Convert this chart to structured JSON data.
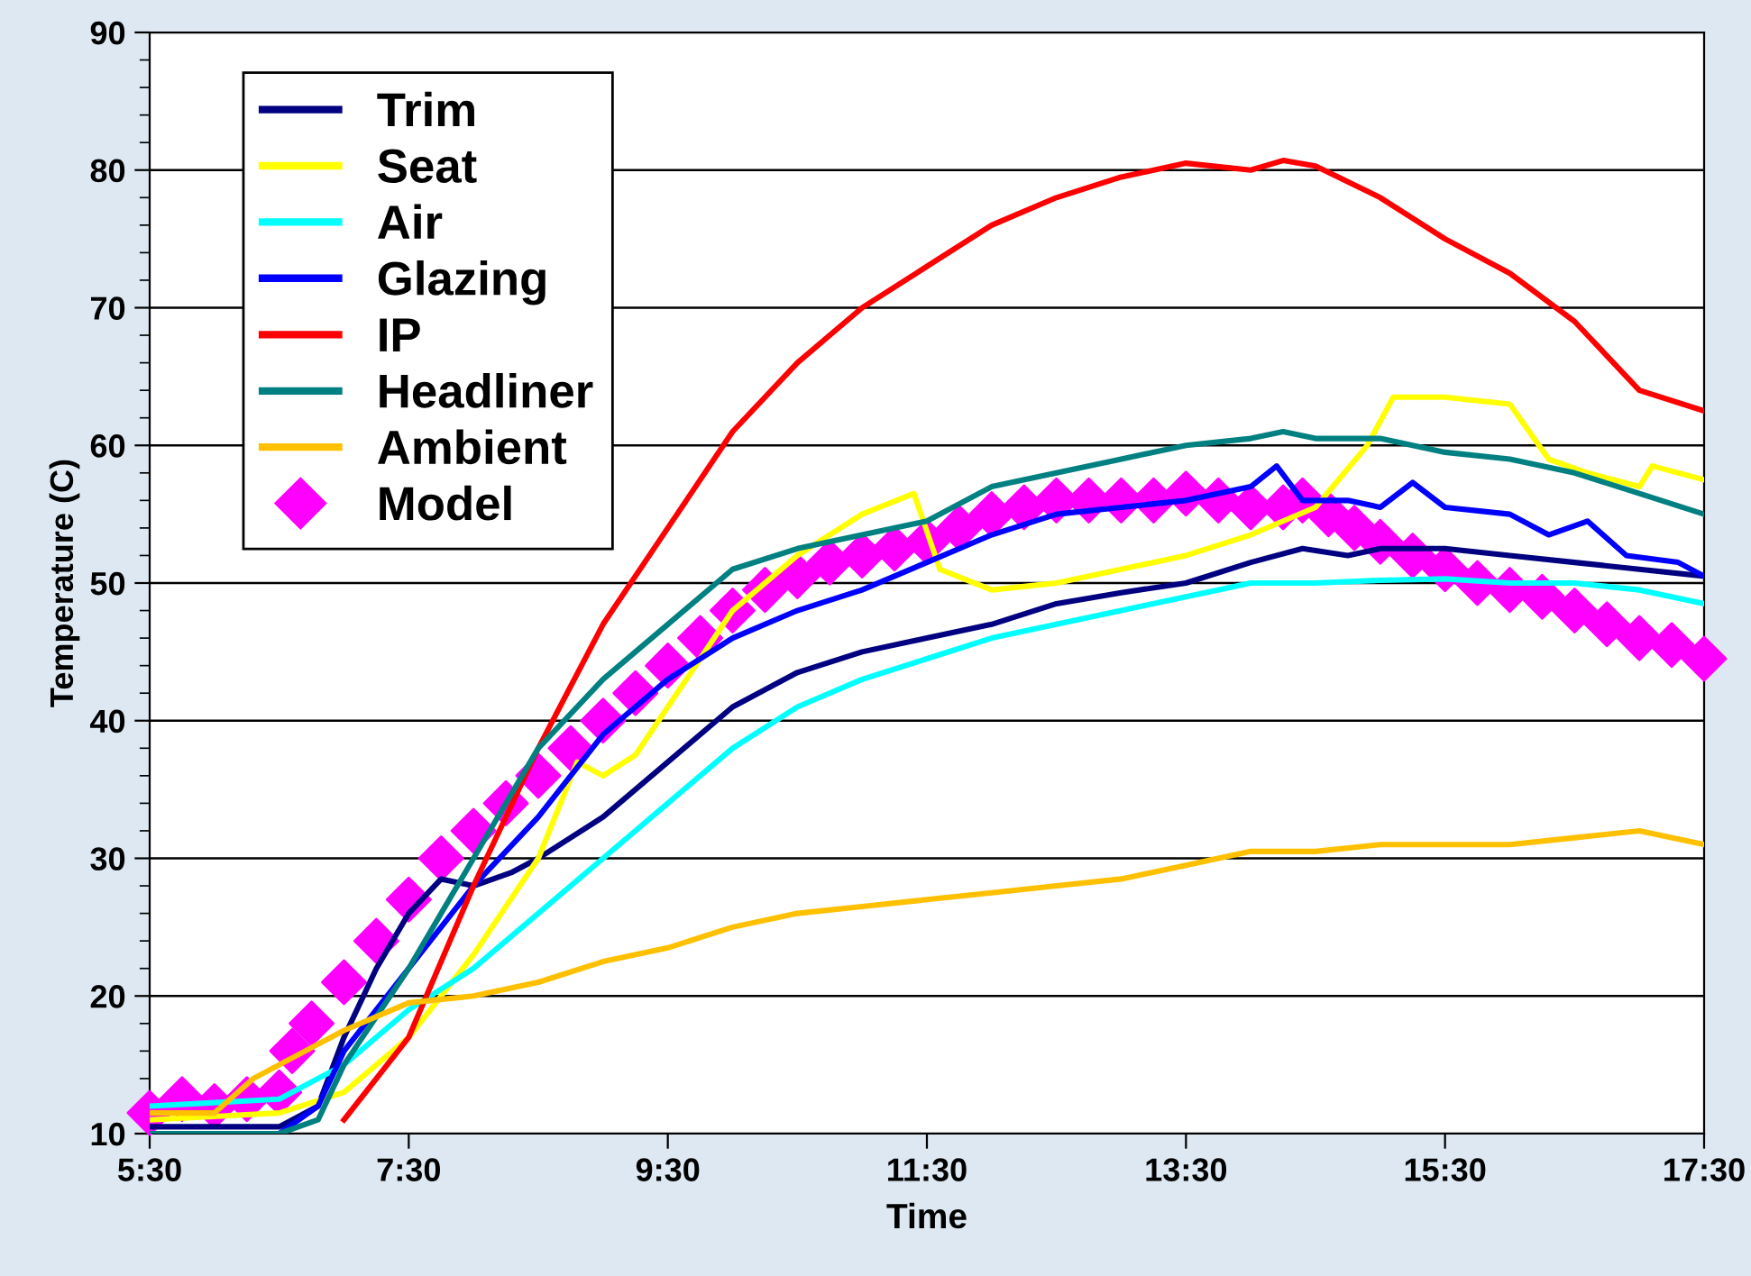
{
  "chart_data": {
    "type": "line",
    "xlabel": "Time",
    "ylabel": "Temperature (C)",
    "xlim": [
      5.5,
      17.5
    ],
    "xticks": [
      {
        "value": 5.5,
        "label": "5:30"
      },
      {
        "value": 7.5,
        "label": "7:30"
      },
      {
        "value": 9.5,
        "label": "9:30"
      },
      {
        "value": 11.5,
        "label": "11:30"
      },
      {
        "value": 13.5,
        "label": "13:30"
      },
      {
        "value": 15.5,
        "label": "15:30"
      },
      {
        "value": 17.5,
        "label": "17:30"
      }
    ],
    "ylim": [
      10,
      90
    ],
    "yticks": [
      10,
      {
        "value": 12,
        "label": null
      },
      {
        "value": 14,
        "label": null
      },
      {
        "value": 16,
        "label": null
      },
      {
        "value": 18,
        "label": null
      },
      20,
      {
        "value": 22,
        "label": null
      },
      {
        "value": 24,
        "label": null
      },
      {
        "value": 26,
        "label": null
      },
      {
        "value": 28,
        "label": null
      },
      30,
      {
        "value": 32,
        "label": null
      },
      {
        "value": 34,
        "label": null
      },
      {
        "value": 36,
        "label": null
      },
      {
        "value": 38,
        "label": null
      },
      40,
      {
        "value": 42,
        "label": null
      },
      {
        "value": 44,
        "label": null
      },
      {
        "value": 46,
        "label": null
      },
      {
        "value": 48,
        "label": null
      },
      50,
      {
        "value": 52,
        "label": null
      },
      {
        "value": 54,
        "label": null
      },
      {
        "value": 56,
        "label": null
      },
      {
        "value": 58,
        "label": null
      },
      60,
      {
        "value": 62,
        "label": null
      },
      {
        "value": 64,
        "label": null
      },
      {
        "value": 66,
        "label": null
      },
      {
        "value": 68,
        "label": null
      },
      70,
      {
        "value": 72,
        "label": null
      },
      {
        "value": 74,
        "label": null
      },
      {
        "value": 76,
        "label": null
      },
      {
        "value": 78,
        "label": null
      },
      80,
      {
        "value": 82,
        "label": null
      },
      {
        "value": 84,
        "label": null
      },
      {
        "value": 86,
        "label": null
      },
      {
        "value": 88,
        "label": null
      },
      90
    ],
    "grid": "y",
    "legend": "top left",
    "marker": "none",
    "line_style": "solid",
    "series": [
      {
        "name": "Trim",
        "color": "#000080",
        "x": [
          5.5,
          6.5,
          6.8,
          7.0,
          7.25,
          7.5,
          7.75,
          8.0,
          8.3,
          8.5,
          9.0,
          9.5,
          10.0,
          10.5,
          11.0,
          11.5,
          12.0,
          12.5,
          13.0,
          13.5,
          14.0,
          14.4,
          14.75,
          15.0,
          15.5,
          16.0,
          16.5,
          17.0,
          17.5
        ],
        "values": [
          10.5,
          10.5,
          12,
          17,
          22,
          26,
          28.5,
          28,
          29,
          30,
          33,
          37,
          41,
          43.5,
          45,
          46,
          47,
          48.5,
          49.3,
          50,
          51.5,
          52.5,
          52,
          52.5,
          52.5,
          52,
          51.5,
          51,
          50.5
        ]
      },
      {
        "name": "Seat",
        "color": "#ffff00",
        "x": [
          5.5,
          6.5,
          7.0,
          7.5,
          8.0,
          8.5,
          8.8,
          9.0,
          9.25,
          9.5,
          10.0,
          10.5,
          11.0,
          11.4,
          11.6,
          12.0,
          12.5,
          13.0,
          13.5,
          14.0,
          14.5,
          14.9,
          15.1,
          15.5,
          16.0,
          16.3,
          16.6,
          17.0,
          17.1,
          17.5
        ],
        "values": [
          11,
          11.5,
          13,
          17,
          23,
          30,
          37,
          36,
          37.5,
          41,
          48,
          52,
          55,
          56.5,
          51,
          49.5,
          50,
          51,
          52,
          53.5,
          55.5,
          60,
          63.5,
          63.5,
          63,
          59,
          58,
          57,
          58.5,
          57.5
        ]
      },
      {
        "name": "Air",
        "color": "#00ffff",
        "x": [
          5.5,
          6.5,
          7.0,
          7.5,
          8.0,
          8.5,
          9.0,
          9.5,
          10.0,
          10.5,
          11.0,
          11.5,
          12.0,
          12.5,
          13.0,
          13.5,
          14.0,
          14.5,
          15.0,
          15.5,
          16.0,
          16.5,
          17.0,
          17.5
        ],
        "values": [
          12,
          12.5,
          15,
          19,
          22,
          26,
          30,
          34,
          38,
          41,
          43,
          44.5,
          46,
          47,
          48,
          49,
          50,
          50,
          50.2,
          50.3,
          50,
          50,
          49.5,
          48.5
        ]
      },
      {
        "name": "Glazing",
        "color": "#0000ff",
        "x": [
          5.5,
          6.0,
          6.5,
          6.8,
          7.0,
          7.5,
          8.0,
          8.5,
          9.0,
          9.5,
          10.0,
          10.5,
          11.0,
          11.5,
          12.0,
          12.5,
          13.0,
          13.5,
          14.0,
          14.2,
          14.4,
          14.75,
          15.0,
          15.25,
          15.5,
          16.0,
          16.3,
          16.6,
          16.9,
          17.3,
          17.5
        ],
        "values": [
          10,
          10,
          10,
          12,
          16,
          22,
          28,
          33,
          39,
          43,
          46,
          48,
          49.5,
          51.5,
          53.5,
          55,
          55.5,
          56,
          57,
          58.5,
          56,
          56,
          55.5,
          57.3,
          55.5,
          55,
          53.5,
          54.5,
          52,
          51.5,
          50.5
        ]
      },
      {
        "name": "IP",
        "color": "#ff0000",
        "x": [
          7.0,
          7.5,
          8.0,
          8.5,
          9.0,
          9.5,
          10.0,
          10.5,
          11.0,
          11.5,
          12.0,
          12.5,
          13.0,
          13.5,
          14.0,
          14.25,
          14.5,
          15.0,
          15.5,
          16.0,
          16.5,
          17.0,
          17.5
        ],
        "values": [
          11,
          17,
          28,
          38,
          47,
          54,
          61,
          66,
          70,
          73,
          76,
          78,
          79.5,
          80.5,
          80,
          80.7,
          80.3,
          78,
          75,
          72.5,
          69,
          64,
          62.5
        ]
      },
      {
        "name": "Headliner",
        "color": "#008080",
        "x": [
          5.5,
          6.5,
          6.8,
          7.0,
          7.5,
          8.0,
          8.5,
          9.0,
          9.5,
          10.0,
          10.5,
          11.0,
          11.5,
          12.0,
          12.5,
          13.0,
          13.5,
          14.0,
          14.25,
          14.5,
          15.0,
          15.5,
          16.0,
          16.5,
          17.0,
          17.5
        ],
        "values": [
          10,
          10,
          11,
          15,
          22,
          30,
          38,
          43,
          47,
          51,
          52.5,
          53.5,
          54.5,
          57,
          58,
          59,
          60,
          60.5,
          61,
          60.5,
          60.5,
          59.5,
          59,
          58,
          56.5,
          55
        ]
      },
      {
        "name": "Ambient",
        "color": "#ffc000",
        "x": [
          5.5,
          6.0,
          6.3,
          6.7,
          7.0,
          7.5,
          8.0,
          8.5,
          9.0,
          9.5,
          10.0,
          10.5,
          11.0,
          11.5,
          12.0,
          12.5,
          13.0,
          13.5,
          14.0,
          14.5,
          15.0,
          15.5,
          16.0,
          16.5,
          17.0,
          17.5
        ],
        "values": [
          11.5,
          11.5,
          14,
          16,
          17.5,
          19.5,
          20,
          21,
          22.5,
          23.5,
          25,
          26,
          26.5,
          27,
          27.5,
          28,
          28.5,
          29.5,
          30.5,
          30.5,
          31,
          31,
          31,
          31.5,
          32,
          31
        ]
      },
      {
        "name": "Model",
        "type": "scatter",
        "marker": "diamond",
        "color": "#ff00ff",
        "x": [
          5.5,
          5.75,
          6.0,
          6.25,
          6.5,
          6.6,
          6.75,
          7.0,
          7.25,
          7.5,
          7.75,
          8.0,
          8.25,
          8.5,
          8.75,
          9.0,
          9.25,
          9.5,
          9.75,
          10.0,
          10.25,
          10.5,
          10.75,
          11.0,
          11.25,
          11.5,
          11.75,
          12.0,
          12.25,
          12.5,
          12.75,
          13.0,
          13.25,
          13.5,
          13.75,
          14.0,
          14.25,
          14.4,
          14.6,
          14.8,
          15.0,
          15.25,
          15.5,
          15.75,
          16.0,
          16.25,
          16.5,
          16.75,
          17.0,
          17.25,
          17.5
        ],
        "values": [
          11.5,
          12.5,
          12,
          12.5,
          13,
          16,
          18,
          21,
          24,
          27,
          30,
          32,
          34,
          36,
          38,
          40,
          42,
          44,
          46,
          48,
          49.5,
          50.5,
          51.5,
          52,
          52.5,
          53,
          54,
          55,
          55.5,
          56,
          56,
          56,
          56,
          56.5,
          56,
          55.5,
          55.5,
          56,
          55,
          54,
          53,
          52,
          51,
          50,
          49.5,
          49,
          48,
          47,
          46,
          45.5,
          44.5
        ]
      }
    ]
  }
}
